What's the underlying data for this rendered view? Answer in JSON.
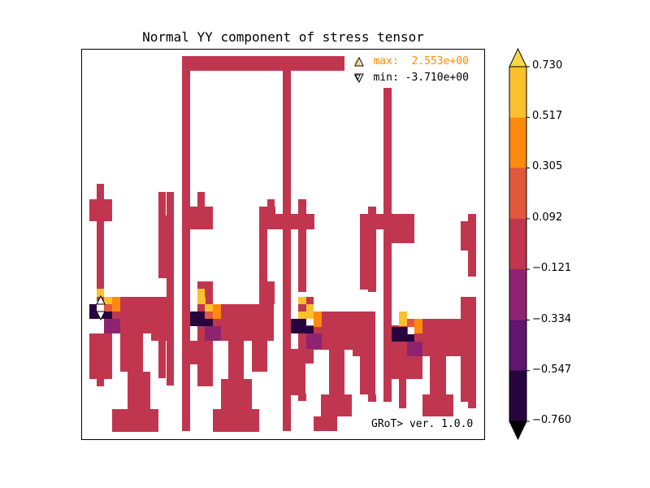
{
  "chart_data": {
    "type": "heatmap",
    "title": "Normal YY component of stress tensor",
    "annotations": {
      "max_symbol": "△",
      "max_label": "max:",
      "max_value": "2.553e+00",
      "min_symbol": "▽",
      "min_label": "min:",
      "min_value": "-3.710e+00",
      "version": "GRoT> ver. 1.0.0"
    },
    "colorbar": {
      "ticks": [
        "0.730",
        "0.517",
        "0.305",
        "0.092",
        "−0.121",
        "−0.334",
        "−0.547",
        "−0.760"
      ],
      "bin_colors": [
        "#fbc02d",
        "#fb8a0f",
        "#e1583b",
        "#c1364f",
        "#8e2470",
        "#60156f",
        "#27063e"
      ],
      "over_color": "#f6d847",
      "under_color": "#000004",
      "range": [
        -0.76,
        0.73
      ],
      "extend": "both"
    },
    "value_colors": {
      "body": "#c1364f",
      "hot": "#fbc02d",
      "hot2": "#fb8a0f",
      "warm": "#e1583b",
      "cool": "#8e2470",
      "cold": "#27063e"
    }
  }
}
